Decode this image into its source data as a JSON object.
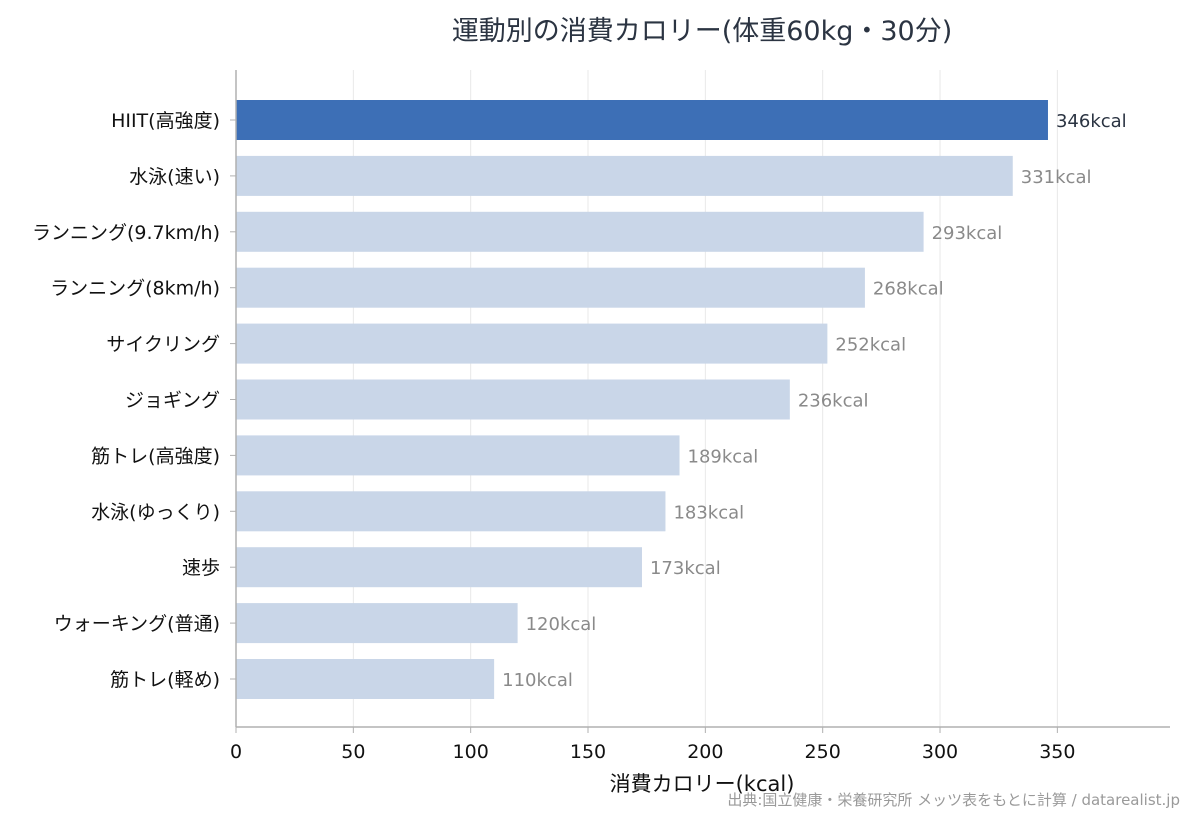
{
  "chart_data": {
    "type": "bar",
    "orientation": "horizontal",
    "title": "運動別の消費カロリー(体重60kg・30分)",
    "xlabel": "消費カロリー(kcal)",
    "ylabel": "",
    "xlim": [
      0,
      398
    ],
    "xticks": [
      0,
      50,
      100,
      150,
      200,
      250,
      300,
      350
    ],
    "grid": "vertical",
    "value_suffix": "kcal",
    "categories": [
      "HIIT(高強度)",
      "水泳(速い)",
      "ランニング(9.7km/h)",
      "ランニング(8km/h)",
      "サイクリング",
      "ジョギング",
      "筋トレ(高強度)",
      "水泳(ゆっくり)",
      "速歩",
      "ウォーキング(普通)",
      "筋トレ(軽め)"
    ],
    "values": [
      346,
      331,
      293,
      268,
      252,
      236,
      189,
      183,
      173,
      120,
      110
    ],
    "highlight_index": 0,
    "colors": {
      "highlight": "#3d6fb6",
      "default": "#c9d6e8",
      "highlight_label": "#2b3442",
      "default_label": "#8a8a8a",
      "grid": "#e8e8e8",
      "axis": "#b0b0b0"
    }
  },
  "source": "出典:国立健康・栄養研究所 メッツ表をもとに計算 / datarealist.jp"
}
